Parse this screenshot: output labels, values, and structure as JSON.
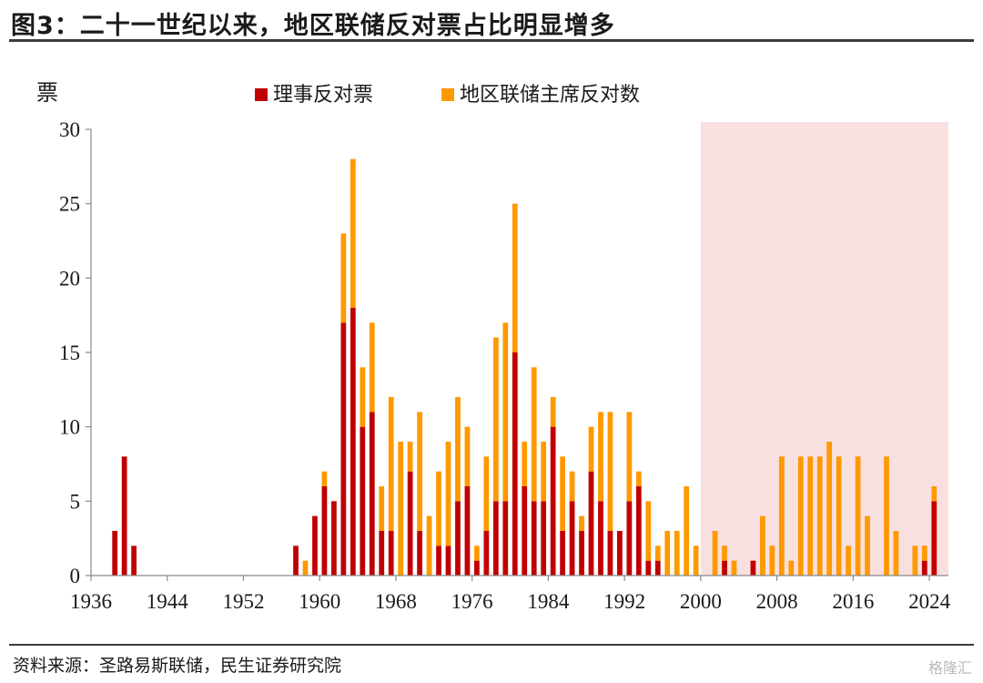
{
  "header": {
    "title": "图3：二十一世纪以来，地区联储反对票占比明显增多"
  },
  "footer": {
    "source": "资料来源：圣路易斯联储，民生证券研究院",
    "watermark": "格隆汇"
  },
  "colors": {
    "governor": "#c00000",
    "president": "#ff9900",
    "highlight": "#f9e0e0"
  },
  "chart_data": {
    "type": "bar",
    "stacked": true,
    "ylabel": "票",
    "ylim": [
      0,
      30
    ],
    "yticks": [
      0,
      5,
      10,
      15,
      20,
      25,
      30
    ],
    "xticks": [
      1936,
      1944,
      1952,
      1960,
      1968,
      1976,
      1984,
      1992,
      2000,
      2008,
      2016,
      2024
    ],
    "legend_position": "top",
    "highlight_range": [
      2000,
      2026
    ],
    "categories": [
      1936,
      1937,
      1938,
      1939,
      1940,
      1941,
      1942,
      1943,
      1944,
      1945,
      1946,
      1947,
      1948,
      1949,
      1950,
      1951,
      1952,
      1953,
      1954,
      1955,
      1956,
      1957,
      1958,
      1959,
      1960,
      1961,
      1962,
      1963,
      1964,
      1965,
      1966,
      1967,
      1968,
      1969,
      1970,
      1971,
      1972,
      1973,
      1974,
      1975,
      1976,
      1977,
      1978,
      1979,
      1980,
      1981,
      1982,
      1983,
      1984,
      1985,
      1986,
      1987,
      1988,
      1989,
      1990,
      1991,
      1992,
      1993,
      1994,
      1995,
      1996,
      1997,
      1998,
      1999,
      2000,
      2001,
      2002,
      2003,
      2004,
      2005,
      2006,
      2007,
      2008,
      2009,
      2010,
      2011,
      2012,
      2013,
      2014,
      2015,
      2016,
      2017,
      2018,
      2019,
      2020,
      2021,
      2022,
      2023,
      2024
    ],
    "series": [
      {
        "name": "理事反对票",
        "values": [
          0,
          0,
          3,
          8,
          2,
          0,
          0,
          0,
          0,
          0,
          0,
          0,
          0,
          0,
          0,
          0,
          0,
          0,
          0,
          0,
          0,
          2,
          0,
          4,
          6,
          5,
          17,
          18,
          10,
          11,
          3,
          3,
          0,
          7,
          3,
          0,
          2,
          2,
          5,
          6,
          1,
          3,
          5,
          5,
          15,
          6,
          5,
          5,
          10,
          3,
          5,
          3,
          7,
          5,
          3,
          3,
          5,
          6,
          1,
          1,
          0,
          0,
          0,
          0,
          0,
          0,
          1,
          0,
          0,
          1,
          0,
          0,
          0,
          0,
          0,
          0,
          0,
          0,
          0,
          0,
          0,
          0,
          0,
          0,
          0,
          0,
          0,
          1,
          5
        ]
      },
      {
        "name": "地区联储主席反对数",
        "values": [
          0,
          0,
          0,
          0,
          0,
          0,
          0,
          0,
          0,
          0,
          0,
          0,
          0,
          0,
          0,
          0,
          0,
          0,
          0,
          0,
          0,
          0,
          1,
          0,
          1,
          0,
          6,
          10,
          4,
          6,
          3,
          9,
          9,
          2,
          8,
          4,
          5,
          7,
          7,
          4,
          1,
          5,
          11,
          12,
          10,
          3,
          9,
          4,
          2,
          5,
          2,
          1,
          3,
          6,
          8,
          0,
          6,
          1,
          4,
          1,
          3,
          3,
          6,
          2,
          0,
          3,
          1,
          1,
          0,
          0,
          4,
          2,
          8,
          1,
          8,
          8,
          8,
          9,
          8,
          2,
          8,
          4,
          0,
          8,
          3,
          0,
          2,
          1,
          1
        ]
      }
    ]
  }
}
